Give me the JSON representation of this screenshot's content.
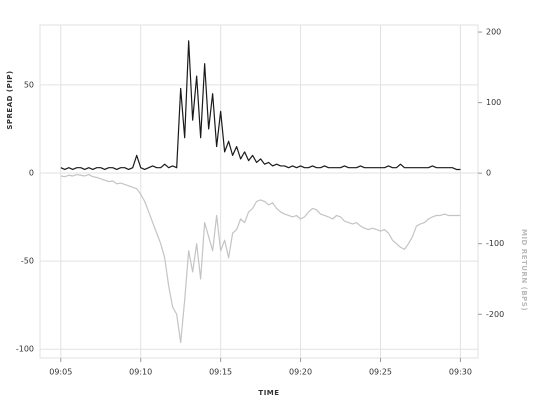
{
  "chart_data": {
    "type": "line",
    "x_label": "TIME",
    "y_label": "SPREAD (PIP)",
    "y2_label": "MID RETURN (BPS)",
    "x": [
      5,
      5.25,
      5.5,
      5.75,
      6,
      6.25,
      6.5,
      6.75,
      7,
      7.25,
      7.5,
      7.75,
      8,
      8.25,
      8.5,
      8.75,
      9,
      9.25,
      9.5,
      9.75,
      10,
      10.25,
      10.5,
      10.75,
      11,
      11.25,
      11.5,
      11.75,
      12,
      12.25,
      12.5,
      12.75,
      13,
      13.25,
      13.5,
      13.75,
      14,
      14.25,
      14.5,
      14.75,
      15,
      15.25,
      15.5,
      15.75,
      16,
      16.25,
      16.5,
      16.75,
      17,
      17.25,
      17.5,
      17.75,
      18,
      18.25,
      18.5,
      18.75,
      19,
      19.25,
      19.5,
      19.75,
      20,
      20.25,
      20.5,
      20.75,
      21,
      21.25,
      21.5,
      21.75,
      22,
      22.25,
      22.5,
      22.75,
      23,
      23.25,
      23.5,
      23.75,
      24,
      24.25,
      24.5,
      24.75,
      25,
      25.25,
      25.5,
      25.75,
      26,
      26.25,
      26.5,
      26.75,
      27,
      27.25,
      27.5,
      27.75,
      28,
      28.25,
      28.5,
      28.75,
      29,
      29.25,
      29.5,
      29.75,
      30
    ],
    "series": [
      {
        "name": "SPREAD (PIP)",
        "color": "#1a1a1a",
        "axis": "y",
        "values": [
          3,
          2,
          3,
          2,
          3,
          3,
          2,
          3,
          2,
          3,
          3,
          2,
          3,
          3,
          2,
          3,
          3,
          2,
          3,
          10,
          3,
          2,
          3,
          4,
          3,
          3,
          5,
          3,
          4,
          3,
          48,
          20,
          75,
          30,
          55,
          20,
          62,
          25,
          45,
          15,
          35,
          12,
          18,
          10,
          15,
          8,
          12,
          7,
          10,
          6,
          8,
          5,
          6,
          4,
          5,
          4,
          4,
          3,
          4,
          3,
          4,
          3,
          3,
          4,
          3,
          3,
          4,
          3,
          3,
          3,
          3,
          4,
          3,
          3,
          3,
          4,
          3,
          3,
          3,
          3,
          3,
          3,
          4,
          3,
          3,
          5,
          3,
          3,
          3,
          3,
          3,
          3,
          3,
          4,
          3,
          3,
          3,
          3,
          3,
          2,
          2
        ]
      },
      {
        "name": "MID RETURN (BPS)",
        "color": "#c4c4c4",
        "axis": "y2",
        "values": [
          -4,
          -5,
          -3,
          -4,
          -2,
          -3,
          -4,
          -2,
          -5,
          -6,
          -8,
          -10,
          -12,
          -11,
          -15,
          -14,
          -16,
          -18,
          -20,
          -22,
          -30,
          -40,
          -55,
          -70,
          -85,
          -100,
          -120,
          -160,
          -190,
          -200,
          -240,
          -180,
          -110,
          -140,
          -100,
          -150,
          -70,
          -90,
          -110,
          -60,
          -110,
          -95,
          -120,
          -85,
          -80,
          -65,
          -70,
          -55,
          -50,
          -40,
          -38,
          -40,
          -45,
          -42,
          -50,
          -55,
          -58,
          -60,
          -62,
          -60,
          -65,
          -62,
          -55,
          -50,
          -52,
          -58,
          -60,
          -62,
          -65,
          -60,
          -62,
          -68,
          -70,
          -72,
          -70,
          -75,
          -78,
          -80,
          -78,
          -80,
          -82,
          -80,
          -85,
          -95,
          -100,
          -105,
          -108,
          -100,
          -90,
          -75,
          -72,
          -70,
          -65,
          -62,
          -60,
          -60,
          -58,
          -60,
          -60,
          -60,
          -60
        ]
      }
    ],
    "xlim": [
      3.7,
      31.1
    ],
    "xticks": [
      {
        "value": 5,
        "label": "09:05"
      },
      {
        "value": 10,
        "label": "09:10"
      },
      {
        "value": 15,
        "label": "09:15"
      },
      {
        "value": 20,
        "label": "09:20"
      },
      {
        "value": 25,
        "label": "09:25"
      },
      {
        "value": 30,
        "label": "09:30"
      }
    ],
    "ylim": [
      -105,
      84
    ],
    "yticks": [
      -100,
      -50,
      0,
      50
    ],
    "y2lim": [
      -262,
      210
    ],
    "y2ticks": [
      -200,
      -100,
      0,
      100,
      200
    ],
    "grid": true
  }
}
